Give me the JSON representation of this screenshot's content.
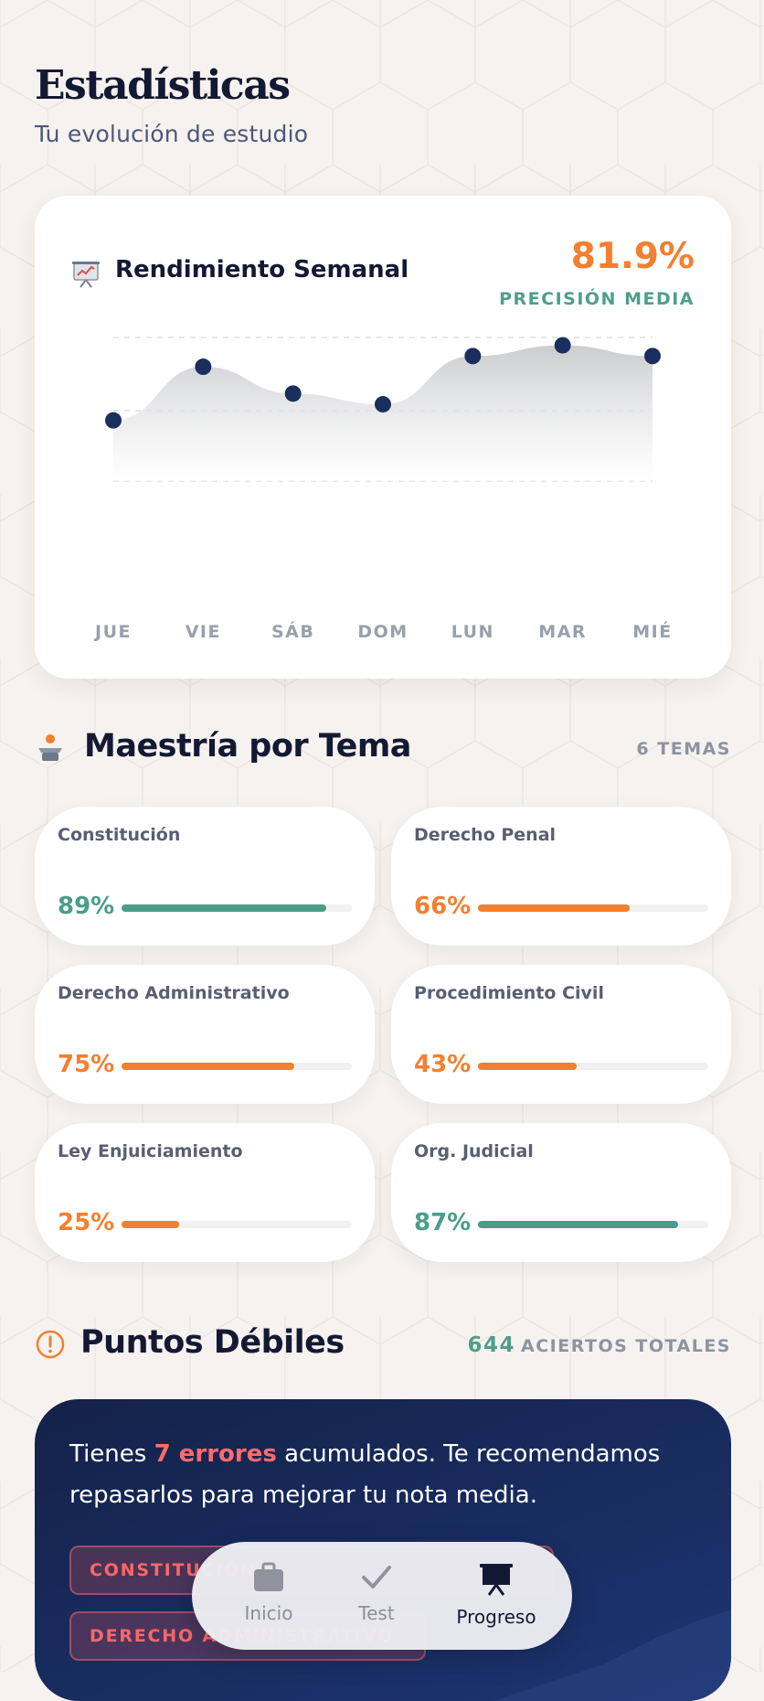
{
  "header": {
    "title": "Estadísticas",
    "subtitle": "Tu evolución de estudio"
  },
  "weekly": {
    "icon": "chart-presentation-icon",
    "title": "Rendimiento Semanal",
    "accuracy": "81.9%",
    "accuracy_label": "PRECISIÓN MEDIA",
    "chart_data": {
      "type": "area",
      "categories": [
        "JUE",
        "VIE",
        "SÁB",
        "DOM",
        "LUN",
        "MAR",
        "MIÉ"
      ],
      "values": [
        76,
        86,
        81,
        79,
        88,
        90,
        88
      ],
      "ylim": [
        0,
        100
      ],
      "grid": true,
      "color": "#1b2f5e"
    }
  },
  "mastery": {
    "icon": "podium-icon",
    "title": "Maestría por Tema",
    "count_label": "6 TEMAS",
    "topics": [
      {
        "name": "Constitución",
        "pct_label": "89%",
        "value": 0.89,
        "color": "#4b9d89"
      },
      {
        "name": "Derecho Penal",
        "pct_label": "66%",
        "value": 0.66,
        "color": "#f37f2f"
      },
      {
        "name": "Derecho Administrativo",
        "pct_label": "75%",
        "value": 0.75,
        "color": "#f37f2f"
      },
      {
        "name": "Procedimiento Civil",
        "pct_label": "43%",
        "value": 0.43,
        "color": "#f37f2f"
      },
      {
        "name": "Ley Enjuiciamiento",
        "pct_label": "25%",
        "value": 0.25,
        "color": "#f37f2f"
      },
      {
        "name": "Org. Judicial",
        "pct_label": "87%",
        "value": 0.87,
        "color": "#4b9d89"
      }
    ]
  },
  "weak": {
    "icon": "alert-circle-icon",
    "title": "Puntos Débiles",
    "total_number": "644",
    "total_label": "ACIERTOS TOTALES",
    "message_prefix": "Tienes ",
    "message_highlight": "7 errores",
    "message_suffix": " acumulados. Te recomendamos repasarlos para mejorar tu nota media.",
    "chips": [
      "CONSTITUCIÓN",
      "DERECHO ADMINISTRATIVO"
    ]
  },
  "nav": {
    "items": [
      {
        "label": "Inicio",
        "icon": "briefcase-icon",
        "active": false
      },
      {
        "label": "Test",
        "icon": "check-icon",
        "active": false
      },
      {
        "label": "Progreso",
        "icon": "presentation-board-icon",
        "active": true
      }
    ]
  },
  "colors": {
    "accent_orange": "#f37f2f",
    "accent_green": "#4f9e8a",
    "navy": "#141933",
    "danger": "#ff6b6b"
  }
}
